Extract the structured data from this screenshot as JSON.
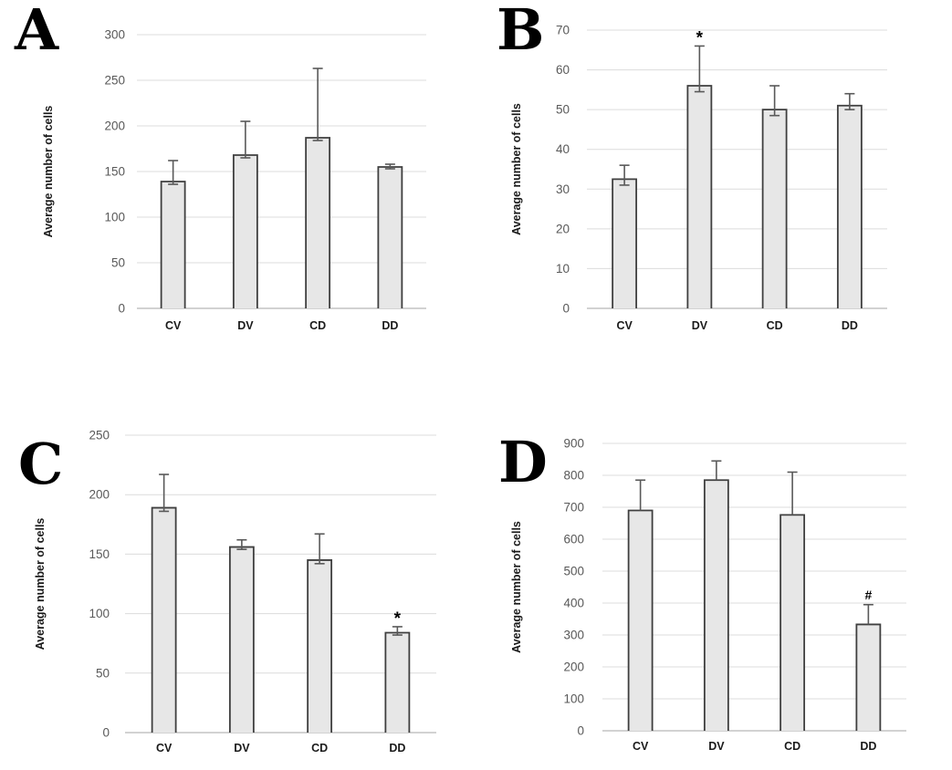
{
  "figure": {
    "ylabel": "Average number of cells",
    "categories": [
      "CV",
      "DV",
      "CD",
      "DD"
    ]
  },
  "colors": {
    "bar_fill": "#e7e7e7",
    "bar_border": "#3f3f3f",
    "error_bar": "#595959",
    "gridline": "#dcdcdc",
    "axis_line": "#c4c4c4",
    "tick_label": "#595959",
    "category_label": "#1a1a1a",
    "annotation": "#000000"
  },
  "chart_data": [
    {
      "type": "bar",
      "panel_label": "A",
      "title": "",
      "xlabel": "",
      "ylabel": "Average number of cells",
      "categories": [
        "CV",
        "DV",
        "CD",
        "DD"
      ],
      "values": [
        139,
        168,
        187,
        155
      ],
      "errors_up": [
        23,
        37,
        76,
        3
      ],
      "errors_down": [
        3,
        3,
        3,
        2
      ],
      "annotations": [
        "",
        "",
        "",
        ""
      ],
      "ylim": [
        0,
        300
      ],
      "ytick_step": 50,
      "grid": true,
      "legend": "none"
    },
    {
      "type": "bar",
      "panel_label": "B",
      "title": "",
      "xlabel": "",
      "ylabel": "Average number of cells",
      "categories": [
        "CV",
        "DV",
        "CD",
        "DD"
      ],
      "values": [
        32.5,
        56,
        50,
        51
      ],
      "errors_up": [
        3.5,
        10,
        6,
        3
      ],
      "errors_down": [
        1.5,
        1.5,
        1.5,
        1
      ],
      "annotations": [
        "",
        "*",
        "",
        ""
      ],
      "ylim": [
        0,
        70
      ],
      "ytick_step": 10,
      "grid": true,
      "legend": "none"
    },
    {
      "type": "bar",
      "panel_label": "C",
      "title": "",
      "xlabel": "",
      "ylabel": "Average number of cells",
      "categories": [
        "CV",
        "DV",
        "CD",
        "DD"
      ],
      "values": [
        189,
        156,
        145,
        84
      ],
      "errors_up": [
        28,
        6,
        22,
        5
      ],
      "errors_down": [
        3,
        2,
        3,
        2
      ],
      "annotations": [
        "",
        "",
        "",
        "*"
      ],
      "ylim": [
        0,
        250
      ],
      "ytick_step": 50,
      "grid": true,
      "legend": "none"
    },
    {
      "type": "bar",
      "panel_label": "D",
      "title": "",
      "xlabel": "",
      "ylabel": "Average number of cells",
      "categories": [
        "CV",
        "DV",
        "CD",
        "DD"
      ],
      "values": [
        690,
        785,
        676,
        333
      ],
      "errors_up": [
        95,
        60,
        134,
        62
      ],
      "errors_down": [
        0,
        0,
        0,
        0
      ],
      "annotations": [
        "",
        "",
        "",
        "#"
      ],
      "ylim": [
        0,
        900
      ],
      "ytick_step": 100,
      "grid": true,
      "legend": "none"
    }
  ]
}
